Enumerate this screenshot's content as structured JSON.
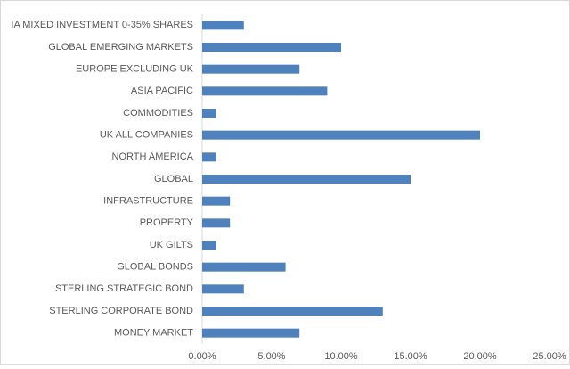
{
  "chart_data": {
    "type": "bar",
    "orientation": "horizontal",
    "categories": [
      "IA MIXED INVESTMENT 0-35% SHARES",
      "GLOBAL EMERGING MARKETS",
      "EUROPE EXCLUDING UK",
      "ASIA PACIFIC",
      "COMMODITIES",
      "UK ALL COMPANIES",
      "NORTH AMERICA",
      "GLOBAL",
      "INFRASTRUCTURE",
      "PROPERTY",
      "UK GILTS",
      "GLOBAL BONDS",
      "STERLING STRATEGIC BOND",
      "STERLING CORPORATE BOND",
      "MONEY MARKET"
    ],
    "values": [
      3,
      10,
      7,
      9,
      1,
      20,
      1,
      15,
      2,
      2,
      1,
      6,
      3,
      13,
      7
    ],
    "color": "#4f81bd",
    "xlim": [
      0,
      25
    ],
    "xticks": [
      {
        "value": 0,
        "label": "0.00%"
      },
      {
        "value": 5,
        "label": "5.00%"
      },
      {
        "value": 10,
        "label": "10.00%"
      },
      {
        "value": 15,
        "label": "15.00%"
      },
      {
        "value": 20,
        "label": "20.00%"
      },
      {
        "value": 25,
        "label": "25.00%"
      }
    ],
    "grid": false
  }
}
